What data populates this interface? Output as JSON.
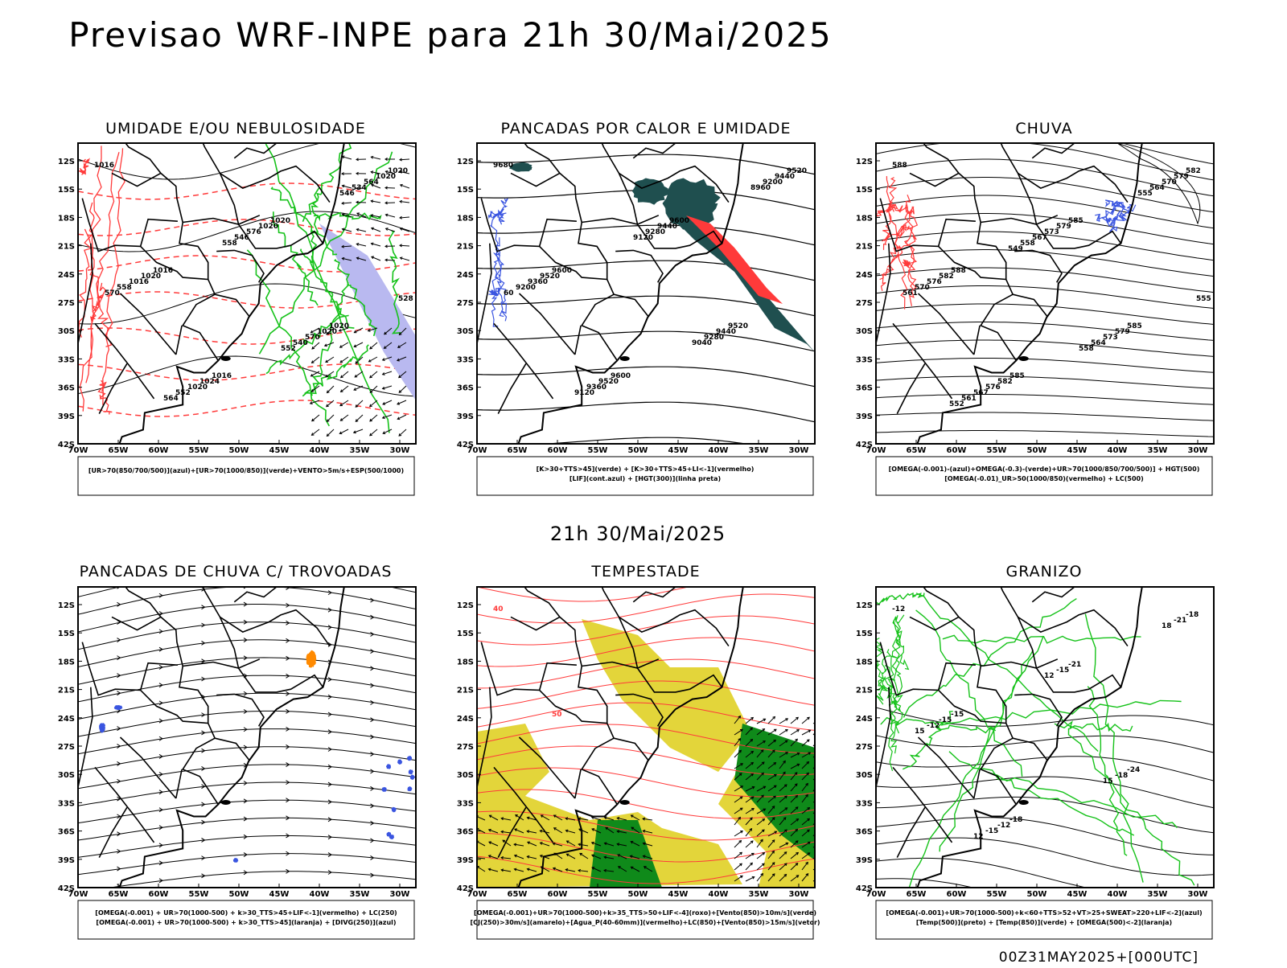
{
  "page": {
    "title": "Previsao WRF-INPE  para 21h 30/Mai/2025",
    "middle_label": "21h 30/Mai/2025",
    "footer_stamp": "00Z31MAY2025+[000UTC]"
  },
  "axes": {
    "lat_ticks": [
      "12S",
      "15S",
      "18S",
      "21S",
      "24S",
      "27S",
      "30S",
      "33S",
      "36S",
      "39S",
      "42S"
    ],
    "lon_ticks": [
      "70W",
      "65W",
      "60W",
      "55W",
      "50W",
      "45W",
      "40W",
      "35W",
      "30W"
    ]
  },
  "colors": {
    "blue": "#3a55e0",
    "green": "#16c21a",
    "red": "#ff3a3a",
    "orange": "#ff8a00",
    "lavender": "#b9b9f0",
    "teal": "#1f4f4f",
    "yellow": "#e3d53a",
    "dark_green": "#0f8a1a"
  },
  "panels": [
    {
      "id": "umidade",
      "title": "UMIDADE E/OU NEBULOSIDADE",
      "legend": [
        "[UR>70(850/700/500)](azul)+[UR>70(1000/850)](verde)+VENTO>5m/s+ESP(500/1000)"
      ],
      "labels": [
        "1016",
        "1016",
        "1016",
        "1020",
        "1020",
        "1020",
        "1020",
        "1024",
        "1020",
        "1020",
        "1020",
        "1016",
        "1020",
        "576",
        "570",
        "564",
        "558",
        "552",
        "546",
        "540",
        "534",
        "570",
        "564",
        "558",
        "552",
        "546",
        "528"
      ]
    },
    {
      "id": "pancadas_calor",
      "title": "PANCADAS POR CALOR E UMIDADE",
      "legend": [
        "[K>30+TTS>45](verde) + [K>30+TTS>45+LI<-1](vermelho)",
        "[LIF](cont.azul) + [HGT(300)](linha preta)"
      ],
      "labels": [
        "9680",
        "9600",
        "9600",
        "9600",
        "9520",
        "9520",
        "9520",
        "9520",
        "9440",
        "9440",
        "9440",
        "9360",
        "9360",
        "9280",
        "9280",
        "9200",
        "9200",
        "9120",
        "9120",
        "9040",
        "8960",
        "60"
      ]
    },
    {
      "id": "chuva",
      "title": "CHUVA",
      "legend": [
        "[OMEGA(-0.001)-(azul)+OMEGA(-0.3)-(verde)+UR>70(1000/850/700/500)] + HGT(500)",
        "[OMEGA(-0.01)_UR>50(1000/850)(vermelho) + LC(500)"
      ],
      "labels": [
        "588",
        "588",
        "585",
        "585",
        "585",
        "582",
        "582",
        "582",
        "579",
        "579",
        "579",
        "576",
        "576",
        "573",
        "573",
        "570",
        "570",
        "567",
        "567",
        "564",
        "564",
        "561",
        "561",
        "558",
        "558",
        "555",
        "555",
        "552",
        "549"
      ]
    },
    {
      "id": "pancadas_trovoadas",
      "title": "PANCADAS DE CHUVA C/ TROVOADAS",
      "legend": [
        "[OMEGA(-0.001) + UR>70(1000-500) + k>30_TTS>45+LIF<-1](vermelho) + LC(250)",
        "[OMEGA(-0.001) + UR>70(1000-500) + k>30_TTS>45](laranja) + [DIVG(250)](azul)"
      ],
      "labels": []
    },
    {
      "id": "tempestade",
      "title": "TEMPESTADE",
      "legend": [
        "[OMEGA(-0.001)+UR>70(1000-500)+k>35_TTS>50+LIF<-4](roxo)+[Vento(850)>10m/s](verde)",
        "[CJ(250)>30m/s](amarelo)+[Agua_P(40-60mm)](vermelho)+LC(850)+[Vento(850)>15m/s](vetor)"
      ],
      "labels": [
        "40",
        "50"
      ]
    },
    {
      "id": "granizo",
      "title": "GRANIZO",
      "legend": [
        "[OMEGA(-0.001)+UR>70(1000-500)+k<60+TTS>52+VT>25+SWEAT>220+LIF<-2](azul)",
        "[Temp(500)](preto) + [Temp(850)](verde) + [OMEGA(500)<-2](laranja)"
      ],
      "labels": [
        "-12",
        "-15",
        "-18",
        "-21",
        "-24",
        "-18",
        "-15",
        "-12",
        "-15",
        "-18",
        "-21",
        "-12",
        "-15",
        "12",
        "15",
        "18",
        "15",
        "12"
      ]
    }
  ]
}
